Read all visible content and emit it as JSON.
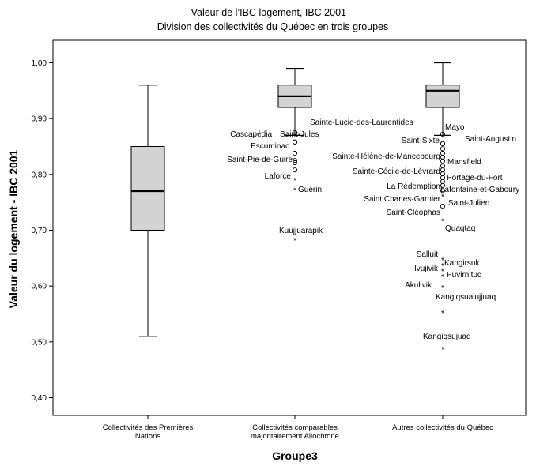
{
  "chart_data": {
    "type": "boxplot",
    "title_lines": [
      "Valeur de l’IBC logement, IBC 2001 –",
      "Division des collectivités du Québec en trois groupes"
    ],
    "xlabel": "Groupe3",
    "ylabel": "Valeur du logement - IBC 2001",
    "ylim": [
      0.37,
      1.03
    ],
    "yticks": [
      {
        "value": 0.4,
        "label": "0,40"
      },
      {
        "value": 0.5,
        "label": "0,50"
      },
      {
        "value": 0.6,
        "label": "0,60"
      },
      {
        "value": 0.7,
        "label": "0,70"
      },
      {
        "value": 0.8,
        "label": "0,80"
      },
      {
        "value": 0.9,
        "label": "0,90"
      },
      {
        "value": 1.0,
        "label": "1,00"
      }
    ],
    "categories": [
      {
        "label_lines": [
          "Collectivités des Premières",
          "Nations"
        ]
      },
      {
        "label_lines": [
          "Collectivités comparables",
          "majoritairement Allochtone"
        ]
      },
      {
        "label_lines": [
          "Autres collectivités du Québec"
        ]
      }
    ],
    "boxes": [
      {
        "whisker_low": 0.51,
        "q1": 0.7,
        "median": 0.77,
        "q3": 0.85,
        "whisker_high": 0.96
      },
      {
        "whisker_low": 0.87,
        "q1": 0.92,
        "median": 0.94,
        "q3": 0.96,
        "whisker_high": 0.99
      },
      {
        "whisker_low": 0.87,
        "q1": 0.92,
        "median": 0.95,
        "q3": 0.96,
        "whisker_high": 1.0
      }
    ],
    "outliers": [
      {
        "group": 1,
        "value": 0.875,
        "marker": "o",
        "label": "Sainte-Lucie-des-Laurentides"
      },
      {
        "group": 1,
        "value": 0.858,
        "marker": "o",
        "label": "Saint-Jules"
      },
      {
        "group": 1,
        "value": 0.858,
        "marker": "o",
        "label": "Cascapédia"
      },
      {
        "group": 1,
        "value": 0.838,
        "marker": "o",
        "label": "Escuminac"
      },
      {
        "group": 1,
        "value": 0.825,
        "marker": "o",
        "label": "Saint-Pie-de-Guire"
      },
      {
        "group": 1,
        "value": 0.821,
        "marker": "o",
        "label": ""
      },
      {
        "group": 1,
        "value": 0.808,
        "marker": "o",
        "label": ""
      },
      {
        "group": 1,
        "value": 0.793,
        "marker": "*",
        "label": "Laforce"
      },
      {
        "group": 1,
        "value": 0.775,
        "marker": "*",
        "label": "Guérin"
      },
      {
        "group": 1,
        "value": 0.685,
        "marker": "*",
        "label": "Kuujjuarapik"
      },
      {
        "group": 2,
        "value": 0.872,
        "marker": "o",
        "label": "Mayo"
      },
      {
        "group": 2,
        "value": 0.855,
        "marker": "o",
        "label": "Saint-Sixte"
      },
      {
        "group": 2,
        "value": 0.855,
        "marker": "o",
        "label": "Saint-Augustin"
      },
      {
        "group": 2,
        "value": 0.846,
        "marker": "o",
        "label": ""
      },
      {
        "group": 2,
        "value": 0.838,
        "marker": "o",
        "label": ""
      },
      {
        "group": 2,
        "value": 0.831,
        "marker": "o",
        "label": ""
      },
      {
        "group": 2,
        "value": 0.824,
        "marker": "o",
        "label": "Sainte-Hélène-de-Mancebourg"
      },
      {
        "group": 2,
        "value": 0.815,
        "marker": "o",
        "label": "Mansfield"
      },
      {
        "group": 2,
        "value": 0.808,
        "marker": "o",
        "label": "Sainte-Cécile-de-Lévrard"
      },
      {
        "group": 2,
        "value": 0.801,
        "marker": "o",
        "label": ""
      },
      {
        "group": 2,
        "value": 0.794,
        "marker": "o",
        "label": "Portage-du-Fort"
      },
      {
        "group": 2,
        "value": 0.787,
        "marker": "o",
        "label": "La Rédemption"
      },
      {
        "group": 2,
        "value": 0.78,
        "marker": "o",
        "label": "Lafontaine-et-Gaboury"
      },
      {
        "group": 2,
        "value": 0.771,
        "marker": "o",
        "label": "Saint Charles-Garnier"
      },
      {
        "group": 2,
        "value": 0.764,
        "marker": "*",
        "label": "Saint-Julien"
      },
      {
        "group": 2,
        "value": 0.743,
        "marker": "o",
        "label": "Saint-Cléophas"
      },
      {
        "group": 2,
        "value": 0.72,
        "marker": "*",
        "label": "Quaqtaq"
      },
      {
        "group": 2,
        "value": 0.65,
        "marker": "*",
        "label": "Salluit"
      },
      {
        "group": 2,
        "value": 0.64,
        "marker": "*",
        "label": "Kangirsuk"
      },
      {
        "group": 2,
        "value": 0.63,
        "marker": "*",
        "label": "Ivujivik"
      },
      {
        "group": 2,
        "value": 0.62,
        "marker": "*",
        "label": "Puvirnituq"
      },
      {
        "group": 2,
        "value": 0.6,
        "marker": "*",
        "label": "Akulivik"
      },
      {
        "group": 2,
        "value": 0.555,
        "marker": "*",
        "label": "Kangiqsualujjuaq"
      },
      {
        "group": 2,
        "value": 0.49,
        "marker": "*",
        "label": "Kangiqsujuaq"
      }
    ],
    "box_fill": "#d3d3d3",
    "grid": false
  }
}
